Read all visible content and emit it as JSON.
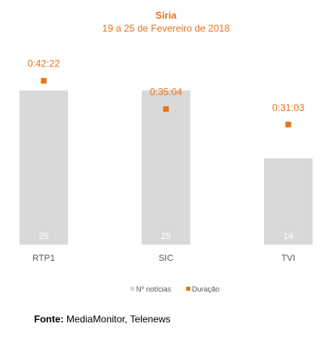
{
  "chart_data": {
    "type": "bar",
    "title": "Síria",
    "subtitle": "19 a 25 de Fevereiro de 2018",
    "categories": [
      "RTP1",
      "SIC",
      "TVI"
    ],
    "series": [
      {
        "name": "Nº notícias",
        "kind": "bar",
        "color": "#D9D9D9",
        "values": [
          25,
          25,
          14
        ]
      },
      {
        "name": "Duração",
        "kind": "marker",
        "color": "#E8731A",
        "values": [
          "0:42:22",
          "0:35:04",
          "0:31:03"
        ],
        "seconds": [
          2542,
          2104,
          1863
        ]
      }
    ],
    "legend_position": "bottom",
    "grid": false
  },
  "footer": {
    "source_label": "Fonte:",
    "source_text": " MediaMonitor, Telenews"
  }
}
